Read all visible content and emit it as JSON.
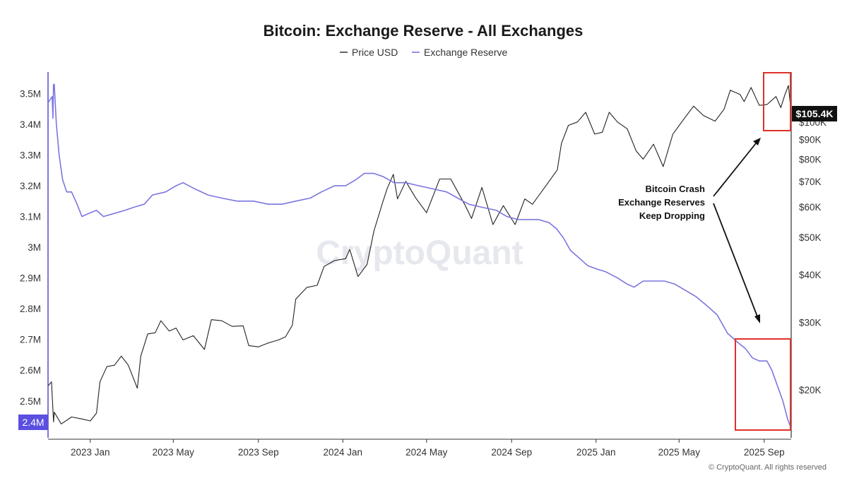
{
  "chart_data": {
    "type": "line",
    "title": "Bitcoin: Exchange Reserve - All Exchanges",
    "legend_position": "top-center",
    "grid": false,
    "watermark": "CryptoQuant",
    "copyright": "© CryptoQuant. All rights reserved",
    "x_ticks": [
      "2023 Jan",
      "2023 May",
      "2023 Sep",
      "2024 Jan",
      "2024 May",
      "2024 Sep",
      "2025 Jan",
      "2025 May",
      "2025 Sep"
    ],
    "x_range": [
      "2022-11-01",
      "2025-10-10"
    ],
    "y_left": {
      "ticks": [
        "3.5M",
        "3.4M",
        "3.3M",
        "3.2M",
        "3.1M",
        "3M",
        "2.9M",
        "2.8M",
        "2.7M",
        "2.6M",
        "2.5M"
      ],
      "range": [
        2.38,
        3.57
      ],
      "current_label": "2.4M"
    },
    "y_right": {
      "scale": "log",
      "ticks": [
        "$100K",
        "$90K",
        "$80K",
        "$70K",
        "$60K",
        "$50K",
        "$40K",
        "$30K",
        "$20K"
      ],
      "range": [
        15000,
        135000
      ],
      "current_label": "$105.4K"
    },
    "series": [
      {
        "name": "Price USD",
        "axis": "right",
        "color": "#222222",
        "points": [
          [
            "2022-11-01",
            20500
          ],
          [
            "2022-11-06",
            21000
          ],
          [
            "2022-11-09",
            16500
          ],
          [
            "2022-11-10",
            17500
          ],
          [
            "2022-11-20",
            16300
          ],
          [
            "2022-12-05",
            17000
          ],
          [
            "2022-12-20",
            16800
          ],
          [
            "2023-01-01",
            16600
          ],
          [
            "2023-01-10",
            17400
          ],
          [
            "2023-01-15",
            21000
          ],
          [
            "2023-01-25",
            23000
          ],
          [
            "2023-02-05",
            23200
          ],
          [
            "2023-02-15",
            24500
          ],
          [
            "2023-02-25",
            23200
          ],
          [
            "2023-03-10",
            20200
          ],
          [
            "2023-03-15",
            24500
          ],
          [
            "2023-03-25",
            28000
          ],
          [
            "2023-04-05",
            28200
          ],
          [
            "2023-04-13",
            30300
          ],
          [
            "2023-04-25",
            28500
          ],
          [
            "2023-05-05",
            29000
          ],
          [
            "2023-05-15",
            27000
          ],
          [
            "2023-05-30",
            27700
          ],
          [
            "2023-06-15",
            25500
          ],
          [
            "2023-06-25",
            30500
          ],
          [
            "2023-07-10",
            30300
          ],
          [
            "2023-07-25",
            29300
          ],
          [
            "2023-08-10",
            29400
          ],
          [
            "2023-08-18",
            26100
          ],
          [
            "2023-09-01",
            25900
          ],
          [
            "2023-09-15",
            26500
          ],
          [
            "2023-09-30",
            27000
          ],
          [
            "2023-10-10",
            27500
          ],
          [
            "2023-10-20",
            29500
          ],
          [
            "2023-10-25",
            34500
          ],
          [
            "2023-11-10",
            37000
          ],
          [
            "2023-11-25",
            37500
          ],
          [
            "2023-12-05",
            42000
          ],
          [
            "2023-12-20",
            43500
          ],
          [
            "2024-01-05",
            44000
          ],
          [
            "2024-01-11",
            46500
          ],
          [
            "2024-01-23",
            39500
          ],
          [
            "2024-02-05",
            42500
          ],
          [
            "2024-02-15",
            52000
          ],
          [
            "2024-02-28",
            62000
          ],
          [
            "2024-03-05",
            67000
          ],
          [
            "2024-03-14",
            73000
          ],
          [
            "2024-03-20",
            63000
          ],
          [
            "2024-04-01",
            70000
          ],
          [
            "2024-04-15",
            63500
          ],
          [
            "2024-05-01",
            58000
          ],
          [
            "2024-05-20",
            71000
          ],
          [
            "2024-06-05",
            71000
          ],
          [
            "2024-06-25",
            61000
          ],
          [
            "2024-07-05",
            56000
          ],
          [
            "2024-07-20",
            67500
          ],
          [
            "2024-08-05",
            54000
          ],
          [
            "2024-08-20",
            60500
          ],
          [
            "2024-09-06",
            54000
          ],
          [
            "2024-09-20",
            63000
          ],
          [
            "2024-10-01",
            61000
          ],
          [
            "2024-10-20",
            68000
          ],
          [
            "2024-11-06",
            75000
          ],
          [
            "2024-11-12",
            88000
          ],
          [
            "2024-11-22",
            98000
          ],
          [
            "2024-12-05",
            100000
          ],
          [
            "2024-12-17",
            106000
          ],
          [
            "2024-12-30",
            93000
          ],
          [
            "2025-01-10",
            94000
          ],
          [
            "2025-01-20",
            106000
          ],
          [
            "2025-02-01",
            100000
          ],
          [
            "2025-02-15",
            96000
          ],
          [
            "2025-02-28",
            84000
          ],
          [
            "2025-03-10",
            80000
          ],
          [
            "2025-03-25",
            87500
          ],
          [
            "2025-04-08",
            76500
          ],
          [
            "2025-04-22",
            93000
          ],
          [
            "2025-05-10",
            103000
          ],
          [
            "2025-05-22",
            110000
          ],
          [
            "2025-06-05",
            104000
          ],
          [
            "2025-06-22",
            100500
          ],
          [
            "2025-07-05",
            108000
          ],
          [
            "2025-07-14",
            121000
          ],
          [
            "2025-07-28",
            118000
          ],
          [
            "2025-08-03",
            113000
          ],
          [
            "2025-08-13",
            123000
          ],
          [
            "2025-08-25",
            110500
          ],
          [
            "2025-09-05",
            111000
          ],
          [
            "2025-09-18",
            116500
          ],
          [
            "2025-09-25",
            109000
          ],
          [
            "2025-10-01",
            118000
          ],
          [
            "2025-10-06",
            124500
          ],
          [
            "2025-10-10",
            105400
          ]
        ]
      },
      {
        "name": "Exchange Reserve",
        "axis": "left",
        "color": "#7b76e0",
        "points": [
          [
            "2022-11-01",
            3.47
          ],
          [
            "2022-11-04",
            3.48
          ],
          [
            "2022-11-07",
            3.49
          ],
          [
            "2022-11-08",
            3.42
          ],
          [
            "2022-11-09",
            3.53
          ],
          [
            "2022-11-10",
            3.53
          ],
          [
            "2022-11-13",
            3.4
          ],
          [
            "2022-11-17",
            3.3
          ],
          [
            "2022-11-22",
            3.22
          ],
          [
            "2022-11-28",
            3.18
          ],
          [
            "2022-12-05",
            3.18
          ],
          [
            "2022-12-13",
            3.14
          ],
          [
            "2022-12-20",
            3.1
          ],
          [
            "2022-12-30",
            3.11
          ],
          [
            "2023-01-10",
            3.12
          ],
          [
            "2023-01-20",
            3.1
          ],
          [
            "2023-02-05",
            3.11
          ],
          [
            "2023-02-20",
            3.12
          ],
          [
            "2023-03-05",
            3.13
          ],
          [
            "2023-03-20",
            3.14
          ],
          [
            "2023-04-01",
            3.17
          ],
          [
            "2023-04-20",
            3.18
          ],
          [
            "2023-05-05",
            3.2
          ],
          [
            "2023-05-15",
            3.21
          ],
          [
            "2023-06-01",
            3.19
          ],
          [
            "2023-06-20",
            3.17
          ],
          [
            "2023-07-10",
            3.16
          ],
          [
            "2023-08-01",
            3.15
          ],
          [
            "2023-08-25",
            3.15
          ],
          [
            "2023-09-15",
            3.14
          ],
          [
            "2023-10-05",
            3.14
          ],
          [
            "2023-10-25",
            3.15
          ],
          [
            "2023-11-15",
            3.16
          ],
          [
            "2023-12-01",
            3.18
          ],
          [
            "2023-12-20",
            3.2
          ],
          [
            "2024-01-05",
            3.2
          ],
          [
            "2024-01-20",
            3.22
          ],
          [
            "2024-02-01",
            3.24
          ],
          [
            "2024-02-15",
            3.24
          ],
          [
            "2024-02-28",
            3.23
          ],
          [
            "2024-03-15",
            3.21
          ],
          [
            "2024-04-01",
            3.21
          ],
          [
            "2024-04-20",
            3.2
          ],
          [
            "2024-05-10",
            3.19
          ],
          [
            "2024-05-30",
            3.18
          ],
          [
            "2024-06-15",
            3.16
          ],
          [
            "2024-07-01",
            3.14
          ],
          [
            "2024-07-20",
            3.13
          ],
          [
            "2024-08-10",
            3.12
          ],
          [
            "2024-08-25",
            3.1
          ],
          [
            "2024-09-10",
            3.09
          ],
          [
            "2024-09-25",
            3.09
          ],
          [
            "2024-10-10",
            3.09
          ],
          [
            "2024-10-25",
            3.08
          ],
          [
            "2024-11-05",
            3.06
          ],
          [
            "2024-11-15",
            3.03
          ],
          [
            "2024-11-25",
            2.99
          ],
          [
            "2024-12-05",
            2.97
          ],
          [
            "2024-12-20",
            2.94
          ],
          [
            "2025-01-01",
            2.93
          ],
          [
            "2025-01-15",
            2.92
          ],
          [
            "2025-02-01",
            2.9
          ],
          [
            "2025-02-15",
            2.88
          ],
          [
            "2025-02-25",
            2.87
          ],
          [
            "2025-03-10",
            2.89
          ],
          [
            "2025-03-25",
            2.89
          ],
          [
            "2025-04-10",
            2.89
          ],
          [
            "2025-04-25",
            2.88
          ],
          [
            "2025-05-10",
            2.86
          ],
          [
            "2025-05-25",
            2.84
          ],
          [
            "2025-06-10",
            2.81
          ],
          [
            "2025-06-25",
            2.78
          ],
          [
            "2025-07-10",
            2.72
          ],
          [
            "2025-07-25",
            2.69
          ],
          [
            "2025-08-05",
            2.67
          ],
          [
            "2025-08-15",
            2.64
          ],
          [
            "2025-08-25",
            2.63
          ],
          [
            "2025-09-05",
            2.63
          ],
          [
            "2025-09-12",
            2.6
          ],
          [
            "2025-09-20",
            2.55
          ],
          [
            "2025-09-28",
            2.5
          ],
          [
            "2025-10-05",
            2.44
          ],
          [
            "2025-10-10",
            2.41
          ]
        ]
      }
    ],
    "annotations": [
      {
        "lines": [
          "Bitcoin Crash",
          "Exchange Reserves",
          "Keep Dropping"
        ]
      }
    ]
  }
}
